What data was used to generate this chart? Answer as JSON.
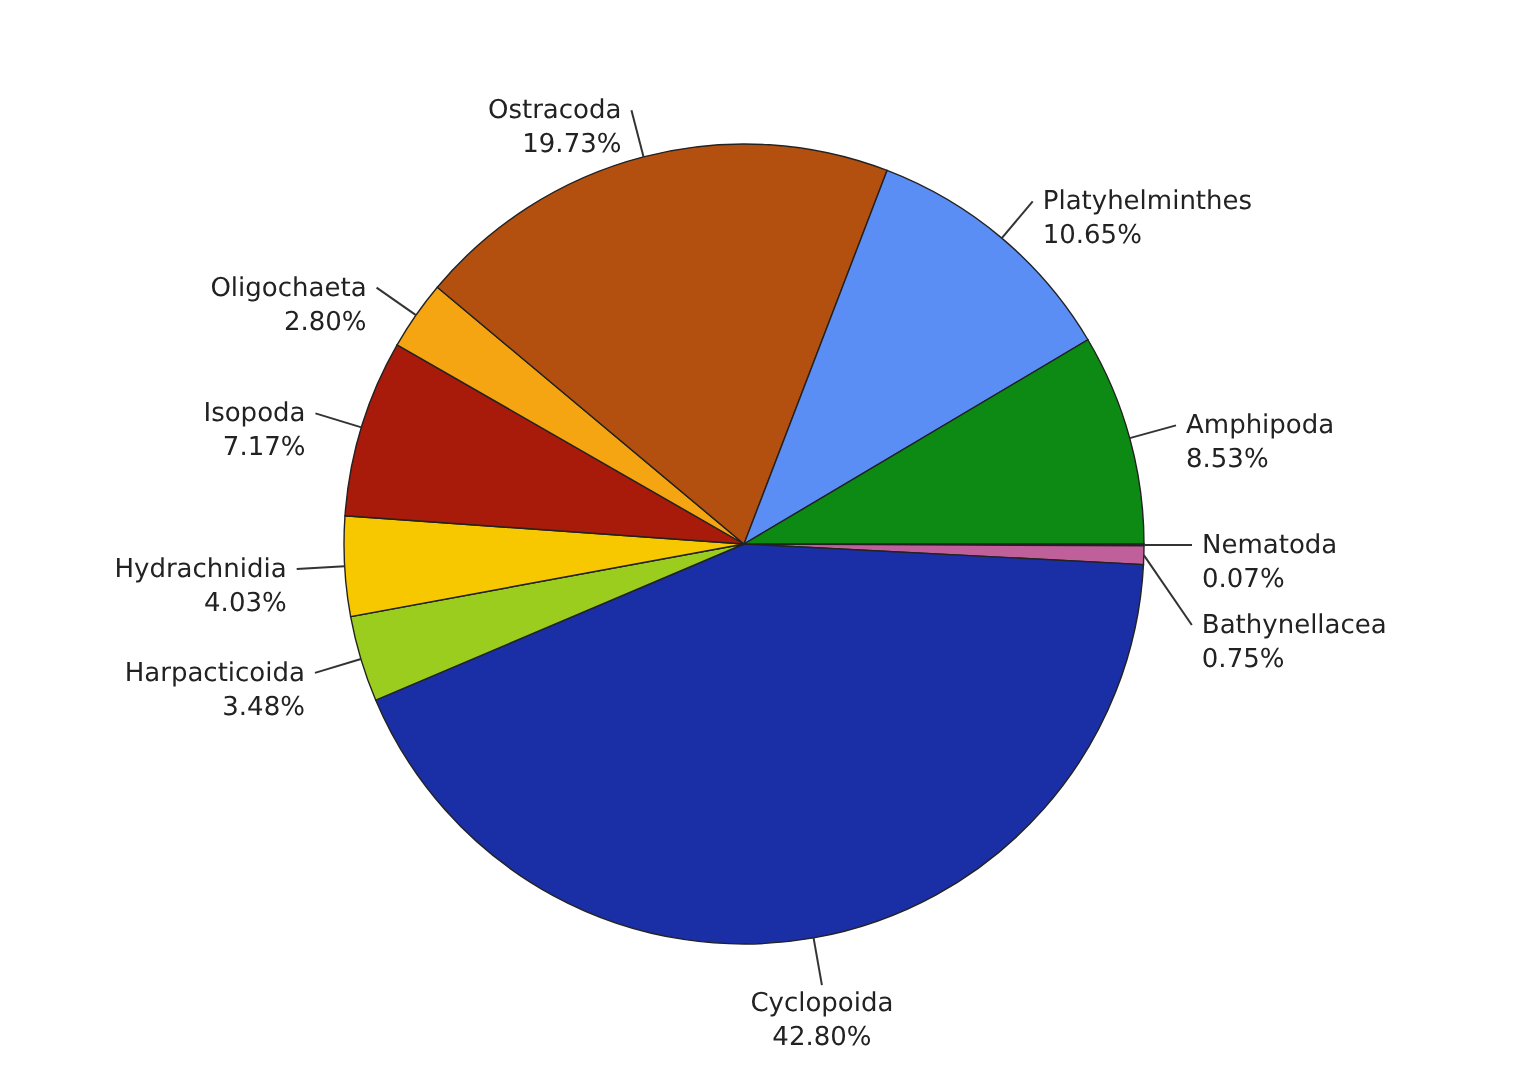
{
  "chart_data": {
    "type": "pie",
    "categories": [
      "Nematoda",
      "Bathynellacea",
      "Cyclopoida",
      "Harpacticoida",
      "Hydrachnidia",
      "Isopoda",
      "Oligochaeta",
      "Ostracoda",
      "Platyhelminthes",
      "Amphipoda"
    ],
    "values": [
      0.07,
      0.75,
      42.8,
      3.48,
      4.03,
      7.17,
      2.8,
      19.73,
      10.65,
      8.53
    ],
    "value_labels": [
      "0.07%",
      "0.75%",
      "42.80%",
      "3.48%",
      "4.03%",
      "7.17%",
      "2.80%",
      "19.73%",
      "10.65%",
      "8.53%"
    ],
    "colors": [
      "#6a2f6a",
      "#c0609a",
      "#1a2fa6",
      "#9acd1e",
      "#f7c800",
      "#a81a0a",
      "#f5a511",
      "#b3500f",
      "#5b8ef5",
      "#0d8a14"
    ]
  }
}
